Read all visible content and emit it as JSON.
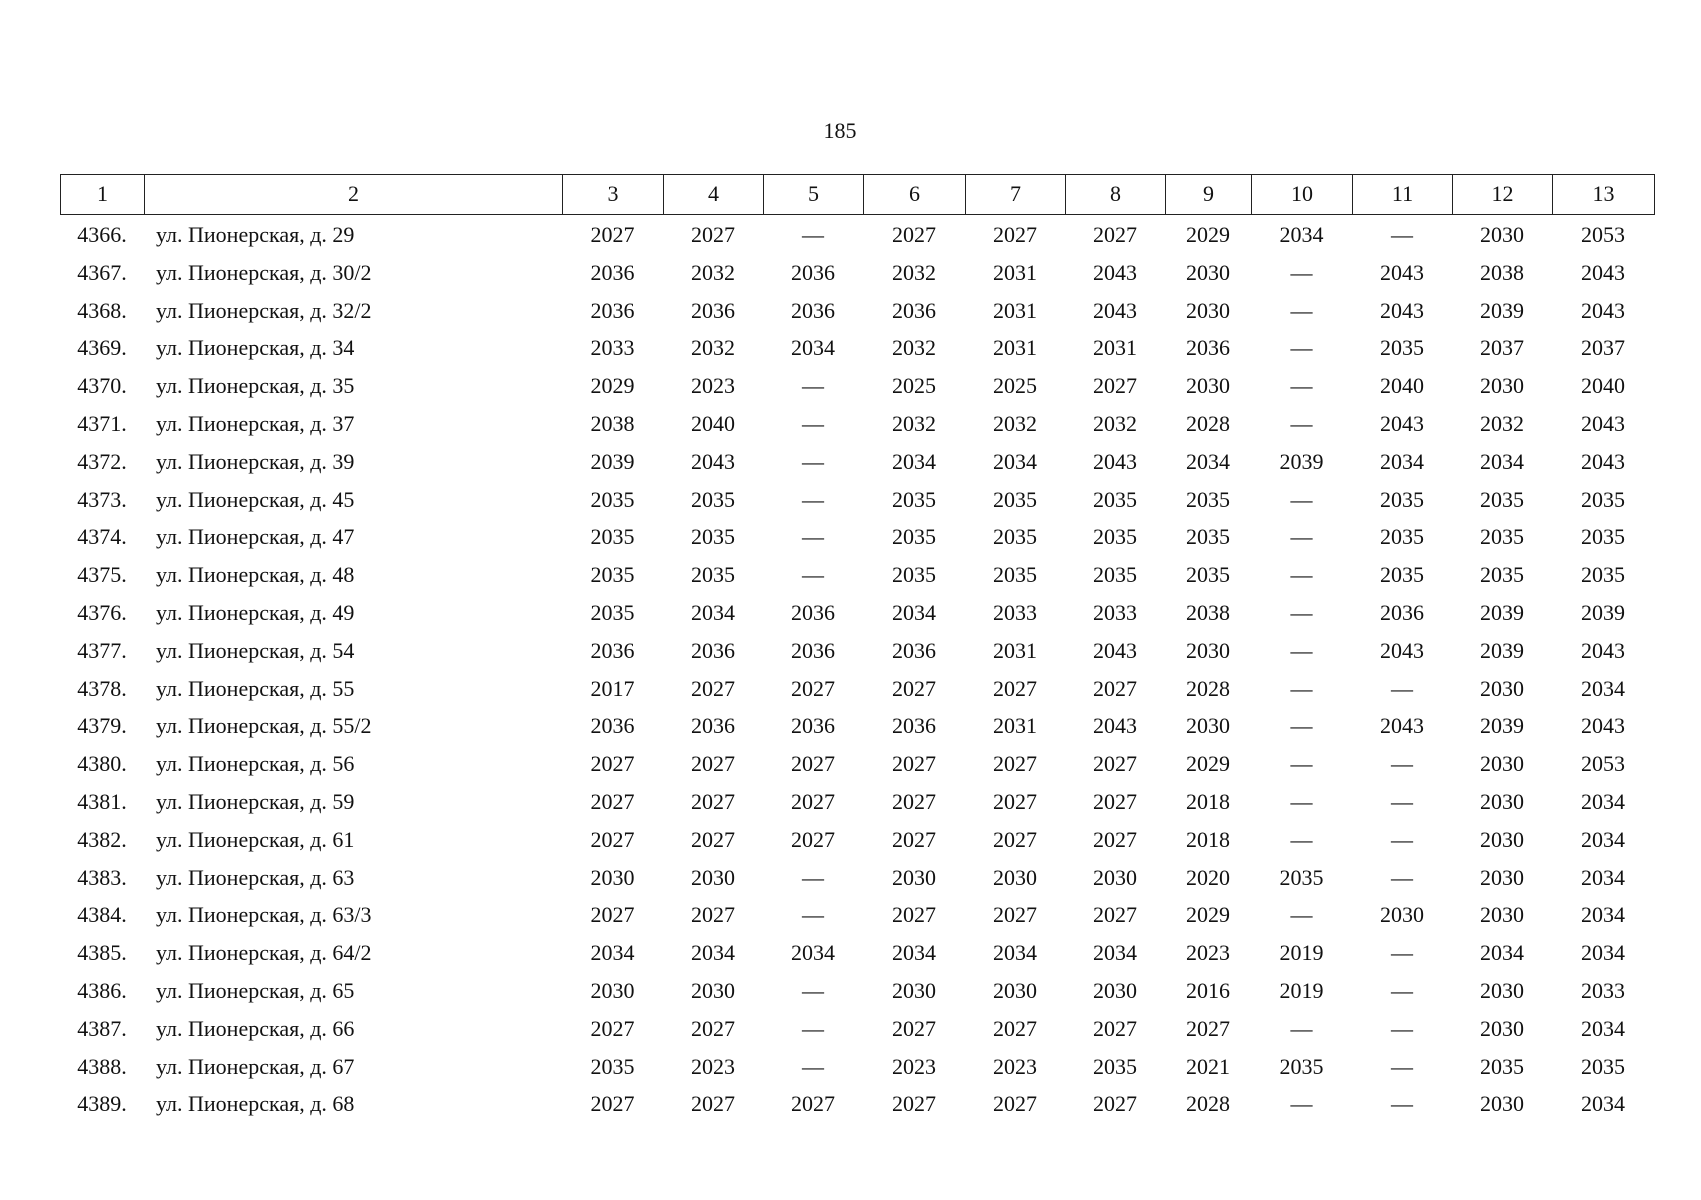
{
  "page_number": "185",
  "table": {
    "header": [
      "1",
      "2",
      "3",
      "4",
      "5",
      "6",
      "7",
      "8",
      "9",
      "10",
      "11",
      "12",
      "13"
    ],
    "rows": [
      [
        "4366.",
        "ул. Пионерская, д. 29",
        "2027",
        "2027",
        "—",
        "2027",
        "2027",
        "2027",
        "2029",
        "2034",
        "—",
        "2030",
        "2053"
      ],
      [
        "4367.",
        "ул. Пионерская, д. 30/2",
        "2036",
        "2032",
        "2036",
        "2032",
        "2031",
        "2043",
        "2030",
        "—",
        "2043",
        "2038",
        "2043"
      ],
      [
        "4368.",
        "ул. Пионерская, д. 32/2",
        "2036",
        "2036",
        "2036",
        "2036",
        "2031",
        "2043",
        "2030",
        "—",
        "2043",
        "2039",
        "2043"
      ],
      [
        "4369.",
        "ул. Пионерская, д. 34",
        "2033",
        "2032",
        "2034",
        "2032",
        "2031",
        "2031",
        "2036",
        "—",
        "2035",
        "2037",
        "2037"
      ],
      [
        "4370.",
        "ул. Пионерская, д. 35",
        "2029",
        "2023",
        "—",
        "2025",
        "2025",
        "2027",
        "2030",
        "—",
        "2040",
        "2030",
        "2040"
      ],
      [
        "4371.",
        "ул. Пионерская, д. 37",
        "2038",
        "2040",
        "—",
        "2032",
        "2032",
        "2032",
        "2028",
        "—",
        "2043",
        "2032",
        "2043"
      ],
      [
        "4372.",
        "ул. Пионерская, д. 39",
        "2039",
        "2043",
        "—",
        "2034",
        "2034",
        "2043",
        "2034",
        "2039",
        "2034",
        "2034",
        "2043"
      ],
      [
        "4373.",
        "ул. Пионерская, д. 45",
        "2035",
        "2035",
        "—",
        "2035",
        "2035",
        "2035",
        "2035",
        "—",
        "2035",
        "2035",
        "2035"
      ],
      [
        "4374.",
        "ул. Пионерская, д. 47",
        "2035",
        "2035",
        "—",
        "2035",
        "2035",
        "2035",
        "2035",
        "—",
        "2035",
        "2035",
        "2035"
      ],
      [
        "4375.",
        "ул. Пионерская, д. 48",
        "2035",
        "2035",
        "—",
        "2035",
        "2035",
        "2035",
        "2035",
        "—",
        "2035",
        "2035",
        "2035"
      ],
      [
        "4376.",
        "ул. Пионерская, д. 49",
        "2035",
        "2034",
        "2036",
        "2034",
        "2033",
        "2033",
        "2038",
        "—",
        "2036",
        "2039",
        "2039"
      ],
      [
        "4377.",
        "ул. Пионерская, д. 54",
        "2036",
        "2036",
        "2036",
        "2036",
        "2031",
        "2043",
        "2030",
        "—",
        "2043",
        "2039",
        "2043"
      ],
      [
        "4378.",
        "ул. Пионерская, д. 55",
        "2017",
        "2027",
        "2027",
        "2027",
        "2027",
        "2027",
        "2028",
        "—",
        "—",
        "2030",
        "2034"
      ],
      [
        "4379.",
        "ул. Пионерская, д. 55/2",
        "2036",
        "2036",
        "2036",
        "2036",
        "2031",
        "2043",
        "2030",
        "—",
        "2043",
        "2039",
        "2043"
      ],
      [
        "4380.",
        "ул. Пионерская, д. 56",
        "2027",
        "2027",
        "2027",
        "2027",
        "2027",
        "2027",
        "2029",
        "—",
        "—",
        "2030",
        "2053"
      ],
      [
        "4381.",
        "ул. Пионерская, д. 59",
        "2027",
        "2027",
        "2027",
        "2027",
        "2027",
        "2027",
        "2018",
        "—",
        "—",
        "2030",
        "2034"
      ],
      [
        "4382.",
        "ул. Пионерская, д. 61",
        "2027",
        "2027",
        "2027",
        "2027",
        "2027",
        "2027",
        "2018",
        "—",
        "—",
        "2030",
        "2034"
      ],
      [
        "4383.",
        "ул. Пионерская, д. 63",
        "2030",
        "2030",
        "—",
        "2030",
        "2030",
        "2030",
        "2020",
        "2035",
        "—",
        "2030",
        "2034"
      ],
      [
        "4384.",
        "ул. Пионерская, д. 63/3",
        "2027",
        "2027",
        "—",
        "2027",
        "2027",
        "2027",
        "2029",
        "—",
        "2030",
        "2030",
        "2034"
      ],
      [
        "4385.",
        "ул. Пионерская, д. 64/2",
        "2034",
        "2034",
        "2034",
        "2034",
        "2034",
        "2034",
        "2023",
        "2019",
        "—",
        "2034",
        "2034"
      ],
      [
        "4386.",
        "ул. Пионерская, д. 65",
        "2030",
        "2030",
        "—",
        "2030",
        "2030",
        "2030",
        "2016",
        "2019",
        "—",
        "2030",
        "2033"
      ],
      [
        "4387.",
        "ул. Пионерская, д. 66",
        "2027",
        "2027",
        "—",
        "2027",
        "2027",
        "2027",
        "2027",
        "—",
        "—",
        "2030",
        "2034"
      ],
      [
        "4388.",
        "ул. Пионерская, д. 67",
        "2035",
        "2023",
        "—",
        "2023",
        "2023",
        "2035",
        "2021",
        "2035",
        "—",
        "2035",
        "2035"
      ],
      [
        "4389.",
        "ул. Пионерская, д. 68",
        "2027",
        "2027",
        "2027",
        "2027",
        "2027",
        "2027",
        "2028",
        "—",
        "—",
        "2030",
        "2034"
      ]
    ]
  }
}
